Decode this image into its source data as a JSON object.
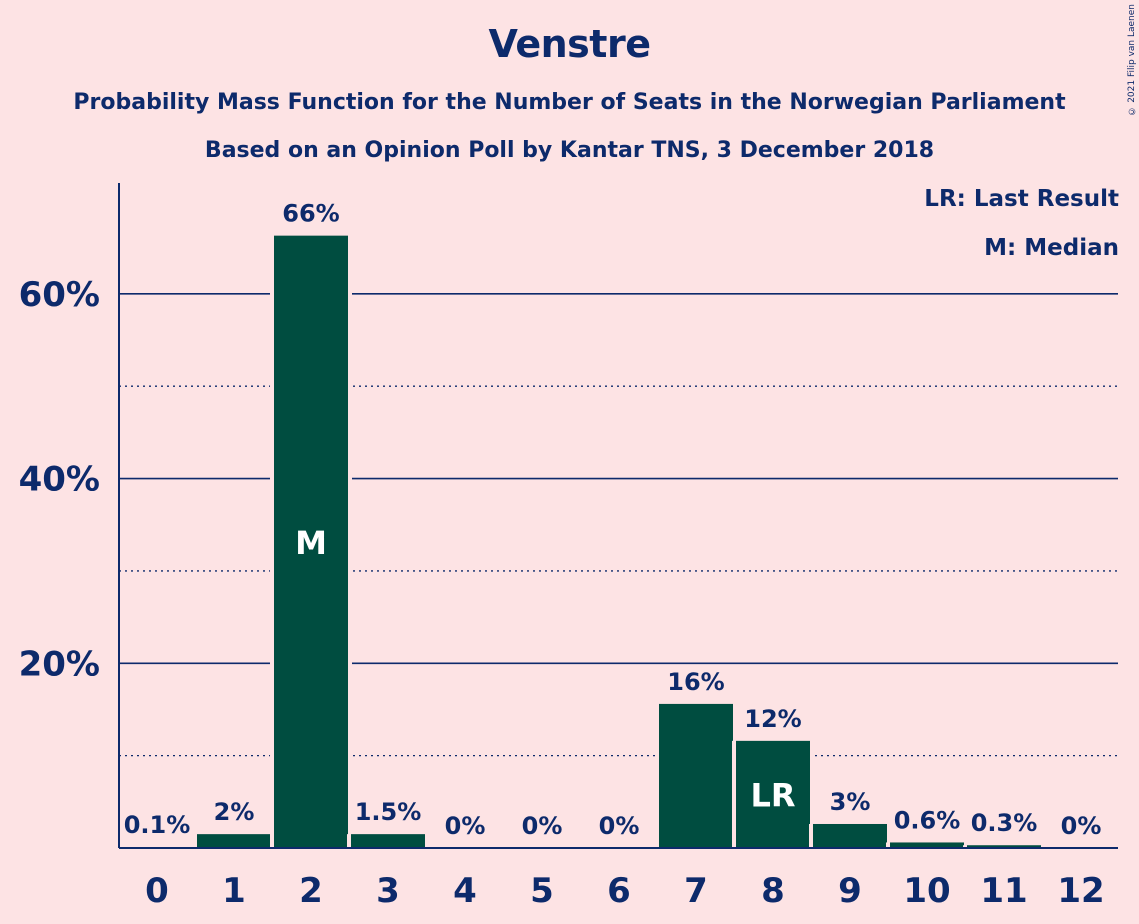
{
  "header": {
    "title": "Venstre",
    "subtitle_line1": "Probability Mass Function for the Number of Seats in the Norwegian Parliament",
    "subtitle_line2": "Based on an Opinion Poll by Kantar TNS, 3 December 2018"
  },
  "copyright": "© 2021 Filip van Laenen",
  "legend": {
    "last_result": "LR: Last Result",
    "median": "M: Median"
  },
  "colors": {
    "background": "#fde3e4",
    "bar": "#004d40",
    "text": "#0d2a6b"
  },
  "chart_data": {
    "type": "bar",
    "categories": [
      "0",
      "1",
      "2",
      "3",
      "4",
      "5",
      "6",
      "7",
      "8",
      "9",
      "10",
      "11",
      "12"
    ],
    "values": [
      0.1,
      1.5,
      66.3,
      1.5,
      0,
      0,
      0,
      15.6,
      11.6,
      2.6,
      0.6,
      0.3,
      0
    ],
    "data_labels": [
      "0.1%",
      "2%",
      "66%",
      "1.5%",
      "0%",
      "0%",
      "0%",
      "16%",
      "12%",
      "3%",
      "0.6%",
      "0.3%",
      "0%"
    ],
    "bar_markers": [
      {
        "category": "2",
        "text": "M"
      },
      {
        "category": "8",
        "text": "LR"
      }
    ],
    "ylim": [
      0,
      72
    ],
    "yticks": [
      20,
      40,
      60
    ],
    "ytick_labels": [
      "20%",
      "40%",
      "60%"
    ],
    "minor_gridlines": [
      10,
      30,
      50
    ],
    "grid": true
  }
}
